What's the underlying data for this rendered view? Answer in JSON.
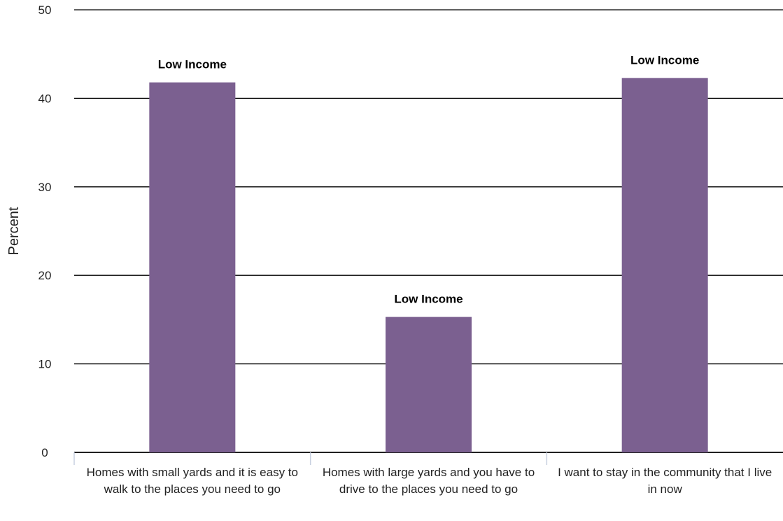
{
  "chart_data": {
    "type": "bar",
    "title": "",
    "xlabel": "",
    "ylabel": "Percent",
    "ylim": [
      0,
      50
    ],
    "yticks": [
      0,
      10,
      20,
      30,
      40,
      50
    ],
    "grid": true,
    "bar_color": "#7b6090",
    "categories": [
      "Homes with small yards and it is easy to walk to the places you need to go",
      "Homes with large yards and you have to drive to the places you need to go",
      "I want to stay in the community that I live in now"
    ],
    "values": [
      41.8,
      15.3,
      42.3
    ],
    "data_labels": [
      "Low Income",
      "Low Income",
      "Low Income"
    ]
  }
}
